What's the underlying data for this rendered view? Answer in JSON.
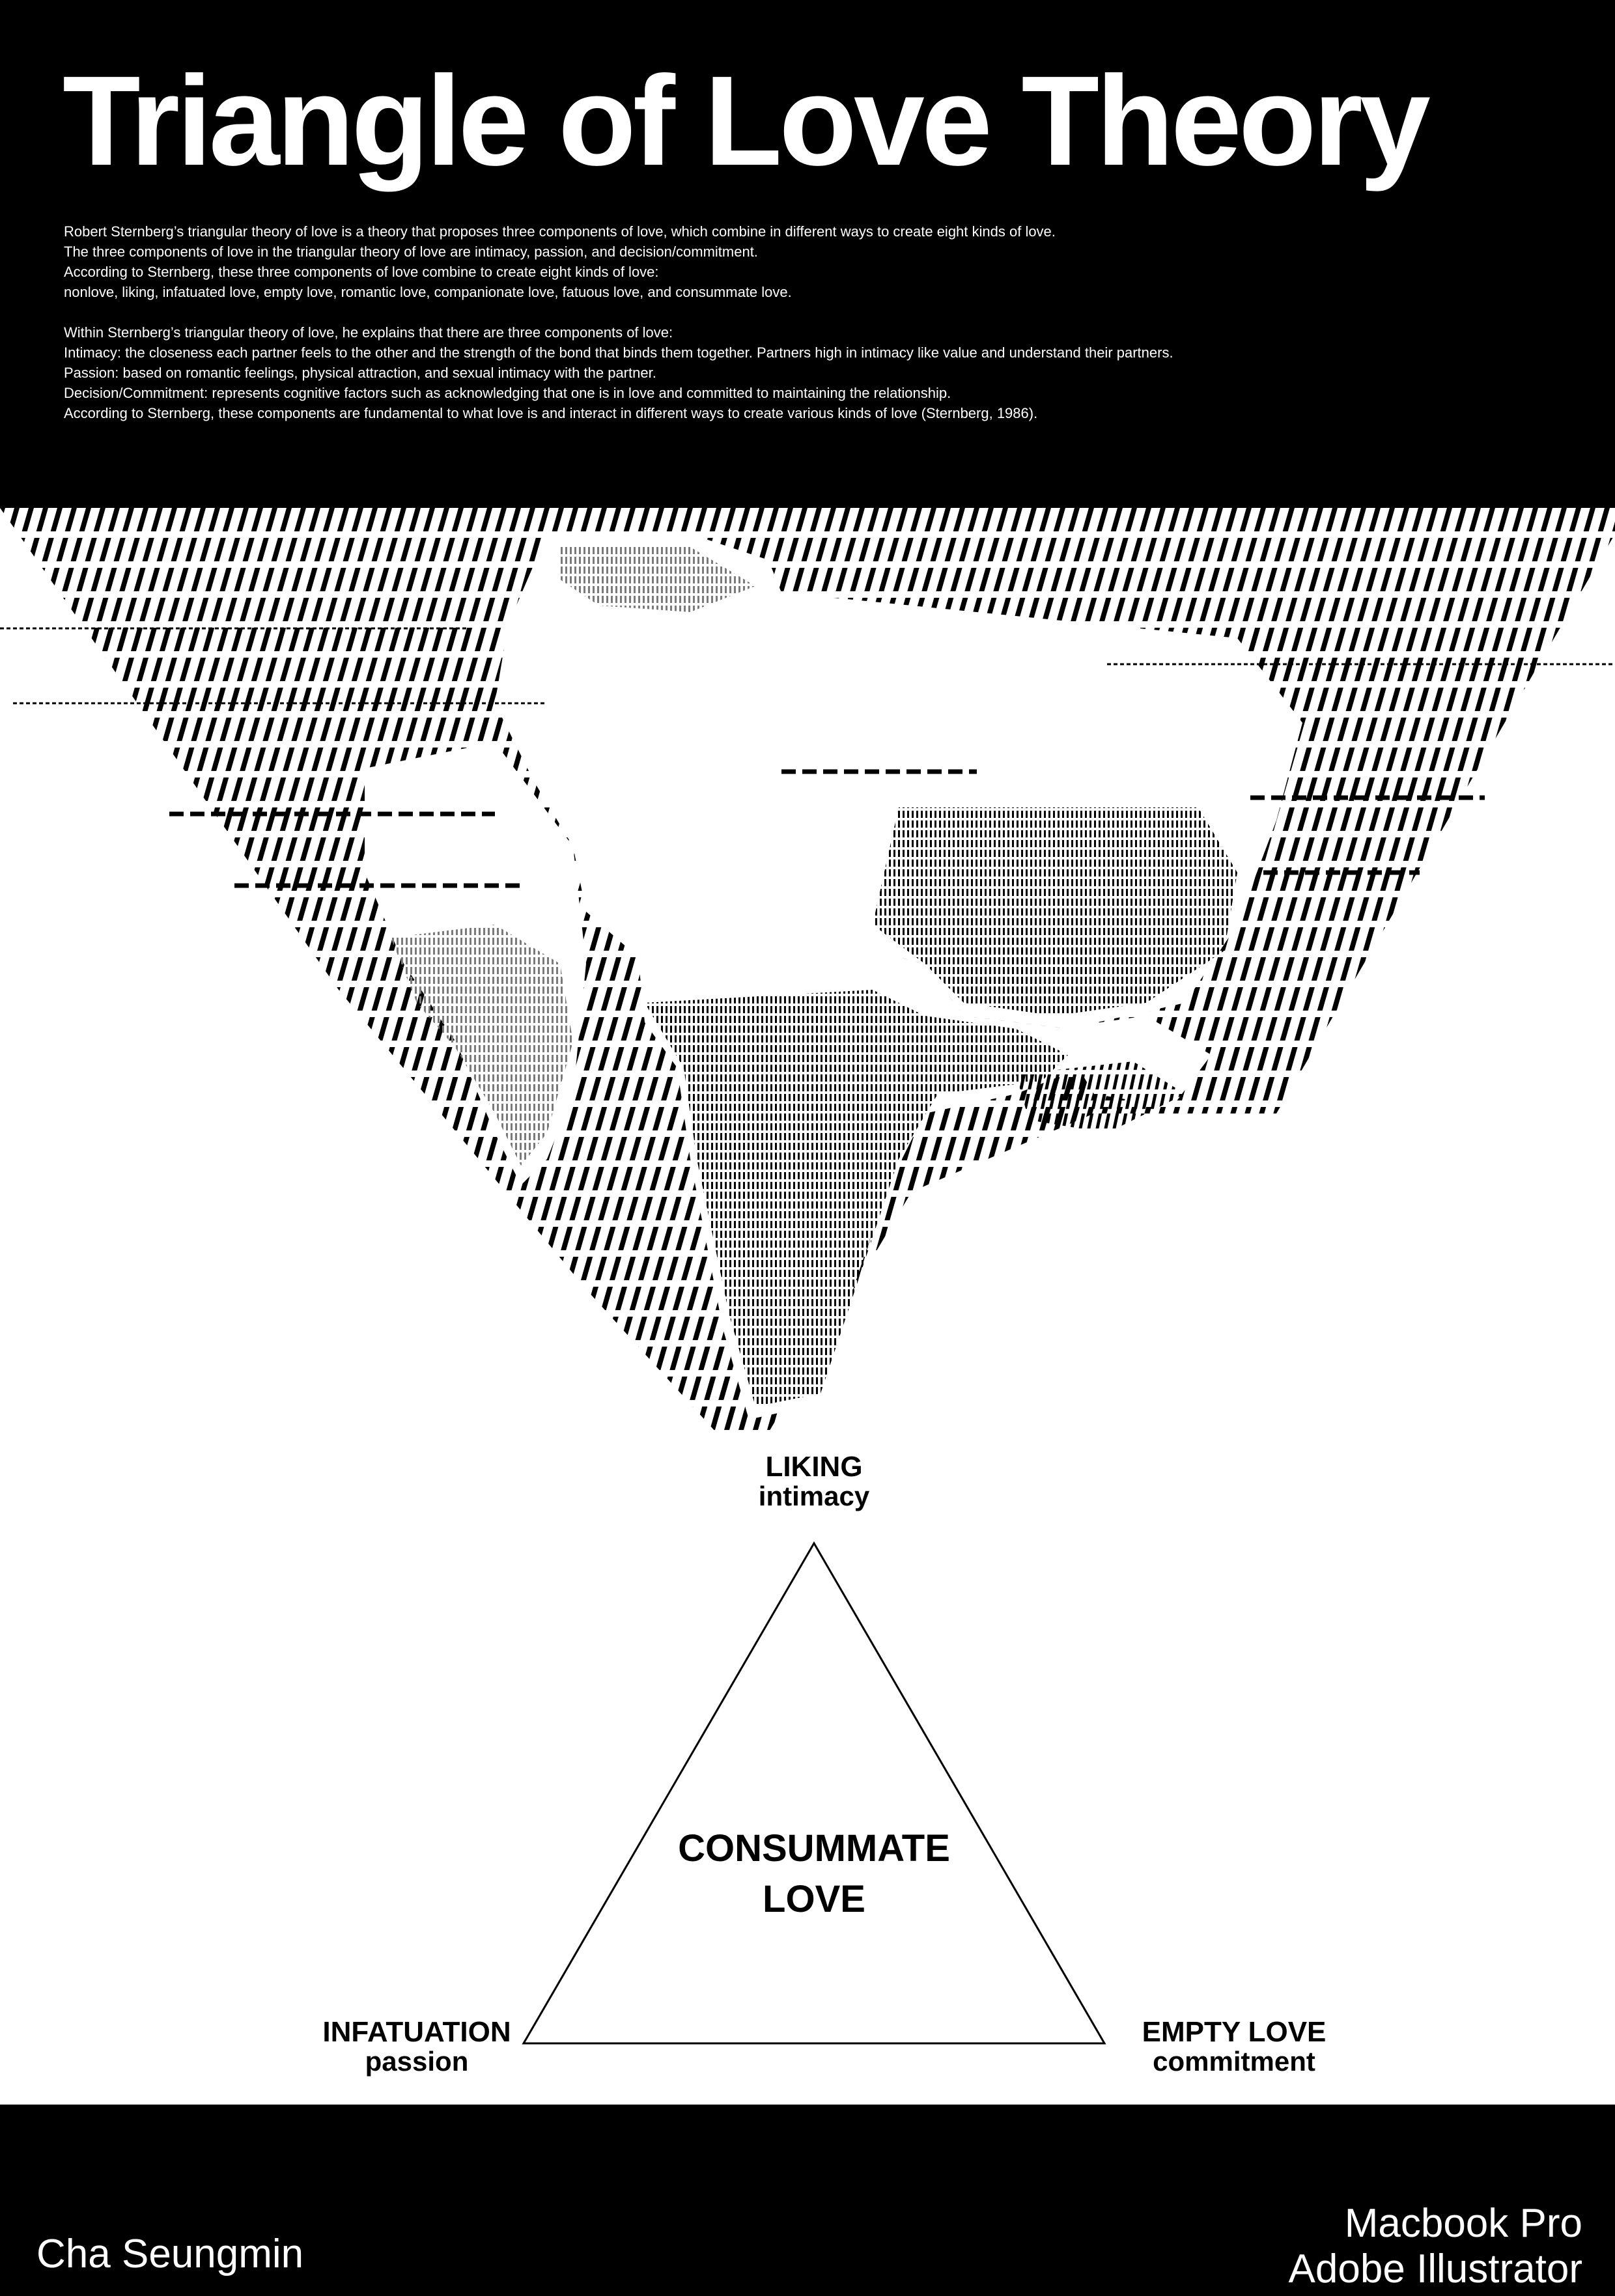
{
  "header": {
    "title": "Triangle of Love Theory",
    "paragraph_1": [
      "Robert Sternberg’s triangular theory of love is a theory that proposes three components of love, which combine in different ways to create eight kinds of love.",
      "The three components of love in the triangular theory of love are intimacy, passion, and decision/commitment.",
      "According to Sternberg, these three components of love combine to create eight kinds of love:",
      "nonlove, liking, infatuated love, empty love, romantic love, companionate love, fatuous love, and consummate love."
    ],
    "paragraph_2": [
      "Within Sternberg’s triangular theory of love, he explains that there are three components of love:",
      "Intimacy: the closeness each partner feels to the other and the strength of the bond that binds them together. Partners high in intimacy like value and understand their partners.",
      "Passion: based on romantic feelings, physical attraction, and sexual intimacy with the partner.",
      "Decision/Commitment: represents cognitive factors such as acknowledging that one is in love and committed to maintaining the relationship.",
      "According to Sternberg, these components are fundamental to what love is and interact in different ways to create various kinds of love (Sternberg, 1986)."
    ]
  },
  "triangle": {
    "top": {
      "main": "LIKING",
      "sub": "intimacy"
    },
    "left": {
      "main": "INFATUATION",
      "sub": "passion"
    },
    "right": {
      "main": "EMPTY LOVE",
      "sub": "commitment"
    },
    "center": [
      "CONSUMMATE",
      "LOVE"
    ]
  },
  "footer": {
    "author": "Cha Seungmin",
    "device": "Macbook Pro",
    "software": "Adobe Illustrator"
  },
  "colors": {
    "background": "#000000",
    "paper": "#ffffff",
    "ink": "#000000"
  }
}
